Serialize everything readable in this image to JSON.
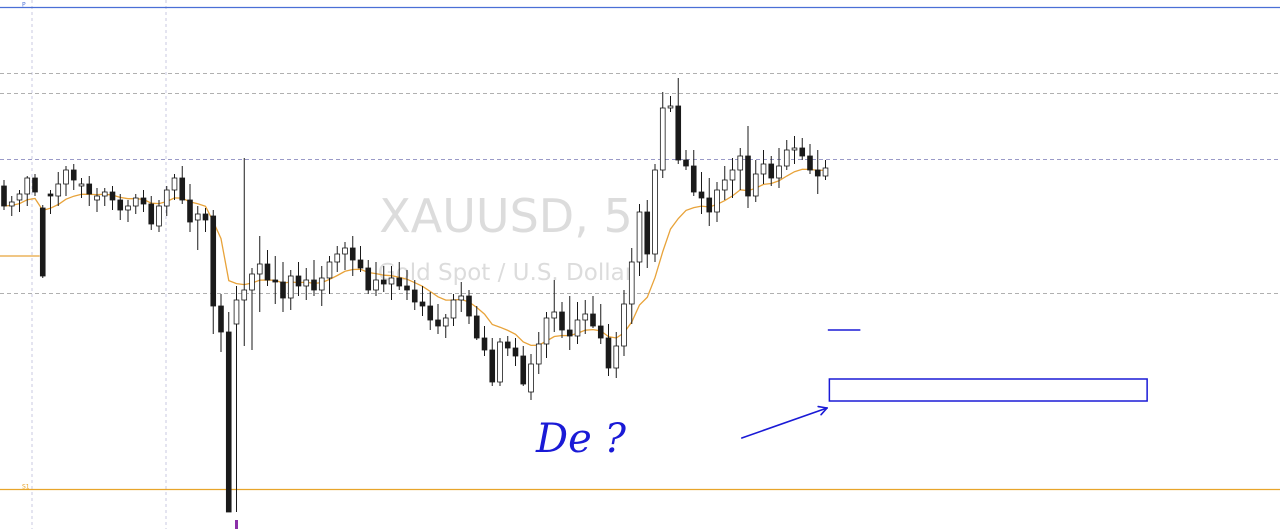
{
  "chart_data": {
    "type": "candlestick",
    "watermark": {
      "title": "XAUUSD, 5",
      "subtitle": "Gold Spot / U.S. Dollar"
    },
    "y_range": [
      0,
      529
    ],
    "moving_average": {
      "color": "#e8a33a"
    },
    "levels": [
      {
        "label": "P",
        "price": 7,
        "color": "#4a6fd6",
        "style": "solid"
      },
      {
        "label": "S1",
        "price": 489,
        "color": "#e8a52a",
        "style": "solid"
      },
      {
        "label": "",
        "price": 73,
        "color": "#b0b0b0",
        "style": "dashed"
      },
      {
        "label": "",
        "price": 93,
        "color": "#b0b0b0",
        "style": "dashed"
      },
      {
        "label": "",
        "price": 159,
        "color": "#9a9ac8",
        "style": "dashed"
      },
      {
        "label": "",
        "price": 293,
        "color": "#b0b0b0",
        "style": "dashed"
      }
    ],
    "candles": [
      [
        186,
        180,
        210,
        206
      ],
      [
        206,
        196,
        216,
        202
      ],
      [
        200,
        190,
        212,
        194
      ],
      [
        194,
        176,
        206,
        178
      ],
      [
        178,
        174,
        196,
        192
      ],
      [
        208,
        205,
        278,
        276
      ],
      [
        194,
        190,
        214,
        196
      ],
      [
        196,
        172,
        206,
        184
      ],
      [
        184,
        166,
        196,
        170
      ],
      [
        170,
        164,
        190,
        180
      ],
      [
        186,
        178,
        198,
        184
      ],
      [
        184,
        176,
        206,
        194
      ],
      [
        200,
        188,
        212,
        196
      ],
      [
        196,
        188,
        206,
        192
      ],
      [
        192,
        186,
        210,
        200
      ],
      [
        200,
        194,
        220,
        210
      ],
      [
        210,
        200,
        222,
        206
      ],
      [
        206,
        194,
        214,
        198
      ],
      [
        198,
        190,
        212,
        204
      ],
      [
        204,
        196,
        230,
        224
      ],
      [
        226,
        200,
        232,
        206
      ],
      [
        206,
        186,
        216,
        190
      ],
      [
        190,
        174,
        200,
        178
      ],
      [
        178,
        166,
        204,
        200
      ],
      [
        200,
        184,
        232,
        222
      ],
      [
        220,
        206,
        250,
        214
      ],
      [
        214,
        208,
        232,
        220
      ],
      [
        216,
        210,
        334,
        306
      ],
      [
        306,
        294,
        352,
        332
      ],
      [
        332,
        312,
        512,
        512
      ],
      [
        324,
        286,
        512,
        300
      ],
      [
        300,
        158,
        346,
        290
      ],
      [
        290,
        268,
        350,
        274
      ],
      [
        274,
        236,
        312,
        264
      ],
      [
        264,
        250,
        286,
        280
      ],
      [
        280,
        256,
        304,
        282
      ],
      [
        282,
        262,
        312,
        298
      ],
      [
        298,
        270,
        310,
        276
      ],
      [
        276,
        262,
        296,
        286
      ],
      [
        286,
        268,
        300,
        280
      ],
      [
        280,
        260,
        296,
        290
      ],
      [
        290,
        266,
        306,
        278
      ],
      [
        278,
        256,
        294,
        262
      ],
      [
        262,
        246,
        272,
        254
      ],
      [
        254,
        242,
        270,
        248
      ],
      [
        248,
        236,
        276,
        260
      ],
      [
        260,
        246,
        272,
        268
      ],
      [
        268,
        260,
        294,
        290
      ],
      [
        290,
        262,
        296,
        280
      ],
      [
        280,
        266,
        292,
        284
      ],
      [
        284,
        266,
        300,
        278
      ],
      [
        278,
        262,
        290,
        286
      ],
      [
        286,
        270,
        300,
        290
      ],
      [
        290,
        280,
        310,
        302
      ],
      [
        302,
        286,
        316,
        306
      ],
      [
        306,
        292,
        330,
        320
      ],
      [
        320,
        304,
        334,
        326
      ],
      [
        326,
        314,
        338,
        318
      ],
      [
        318,
        294,
        326,
        300
      ],
      [
        300,
        282,
        312,
        296
      ],
      [
        296,
        290,
        324,
        316
      ],
      [
        316,
        306,
        340,
        338
      ],
      [
        338,
        326,
        356,
        350
      ],
      [
        350,
        338,
        386,
        382
      ],
      [
        382,
        338,
        386,
        342
      ],
      [
        342,
        336,
        356,
        348
      ],
      [
        348,
        338,
        366,
        356
      ],
      [
        356,
        346,
        386,
        384
      ],
      [
        392,
        354,
        400,
        364
      ],
      [
        364,
        332,
        374,
        344
      ],
      [
        344,
        312,
        358,
        318
      ],
      [
        318,
        280,
        332,
        312
      ],
      [
        312,
        302,
        338,
        330
      ],
      [
        330,
        296,
        350,
        336
      ],
      [
        336,
        302,
        344,
        320
      ],
      [
        320,
        300,
        334,
        314
      ],
      [
        314,
        296,
        328,
        326
      ],
      [
        326,
        304,
        344,
        338
      ],
      [
        338,
        324,
        376,
        368
      ],
      [
        368,
        332,
        378,
        346
      ],
      [
        346,
        290,
        356,
        304
      ],
      [
        304,
        248,
        324,
        262
      ],
      [
        262,
        204,
        276,
        212
      ],
      [
        212,
        200,
        268,
        254
      ],
      [
        254,
        164,
        262,
        170
      ],
      [
        170,
        92,
        178,
        108
      ],
      [
        108,
        96,
        112,
        106
      ],
      [
        106,
        78,
        164,
        160
      ],
      [
        160,
        150,
        170,
        166
      ],
      [
        166,
        150,
        196,
        192
      ],
      [
        192,
        172,
        214,
        198
      ],
      [
        198,
        178,
        226,
        212
      ],
      [
        212,
        182,
        222,
        190
      ],
      [
        190,
        166,
        200,
        180
      ],
      [
        180,
        158,
        198,
        170
      ],
      [
        170,
        148,
        190,
        156
      ],
      [
        156,
        126,
        208,
        196
      ],
      [
        196,
        160,
        202,
        174
      ],
      [
        174,
        150,
        184,
        164
      ],
      [
        164,
        156,
        186,
        178
      ],
      [
        178,
        148,
        188,
        166
      ],
      [
        166,
        140,
        170,
        150
      ],
      [
        150,
        136,
        164,
        148
      ],
      [
        148,
        138,
        160,
        156
      ],
      [
        156,
        144,
        174,
        170
      ],
      [
        170,
        150,
        194,
        176
      ],
      [
        176,
        160,
        180,
        168
      ]
    ],
    "drawings": [
      {
        "kind": "rectangle",
        "time_start": 106.5,
        "time_end": 147.5,
        "price_top": 379,
        "price_bottom": 401,
        "color": "#1a1ad6"
      },
      {
        "kind": "ray",
        "time_start": 106.3,
        "time_end": 110.5,
        "price": 330,
        "color": "#1a1ad6"
      },
      {
        "kind": "arrow",
        "from": [
          95.2,
          438
        ],
        "to": [
          106.2,
          408
        ],
        "color": "#1a1ad6"
      }
    ],
    "annotation": {
      "text": "De ?",
      "color": "#1a1ad6"
    }
  }
}
